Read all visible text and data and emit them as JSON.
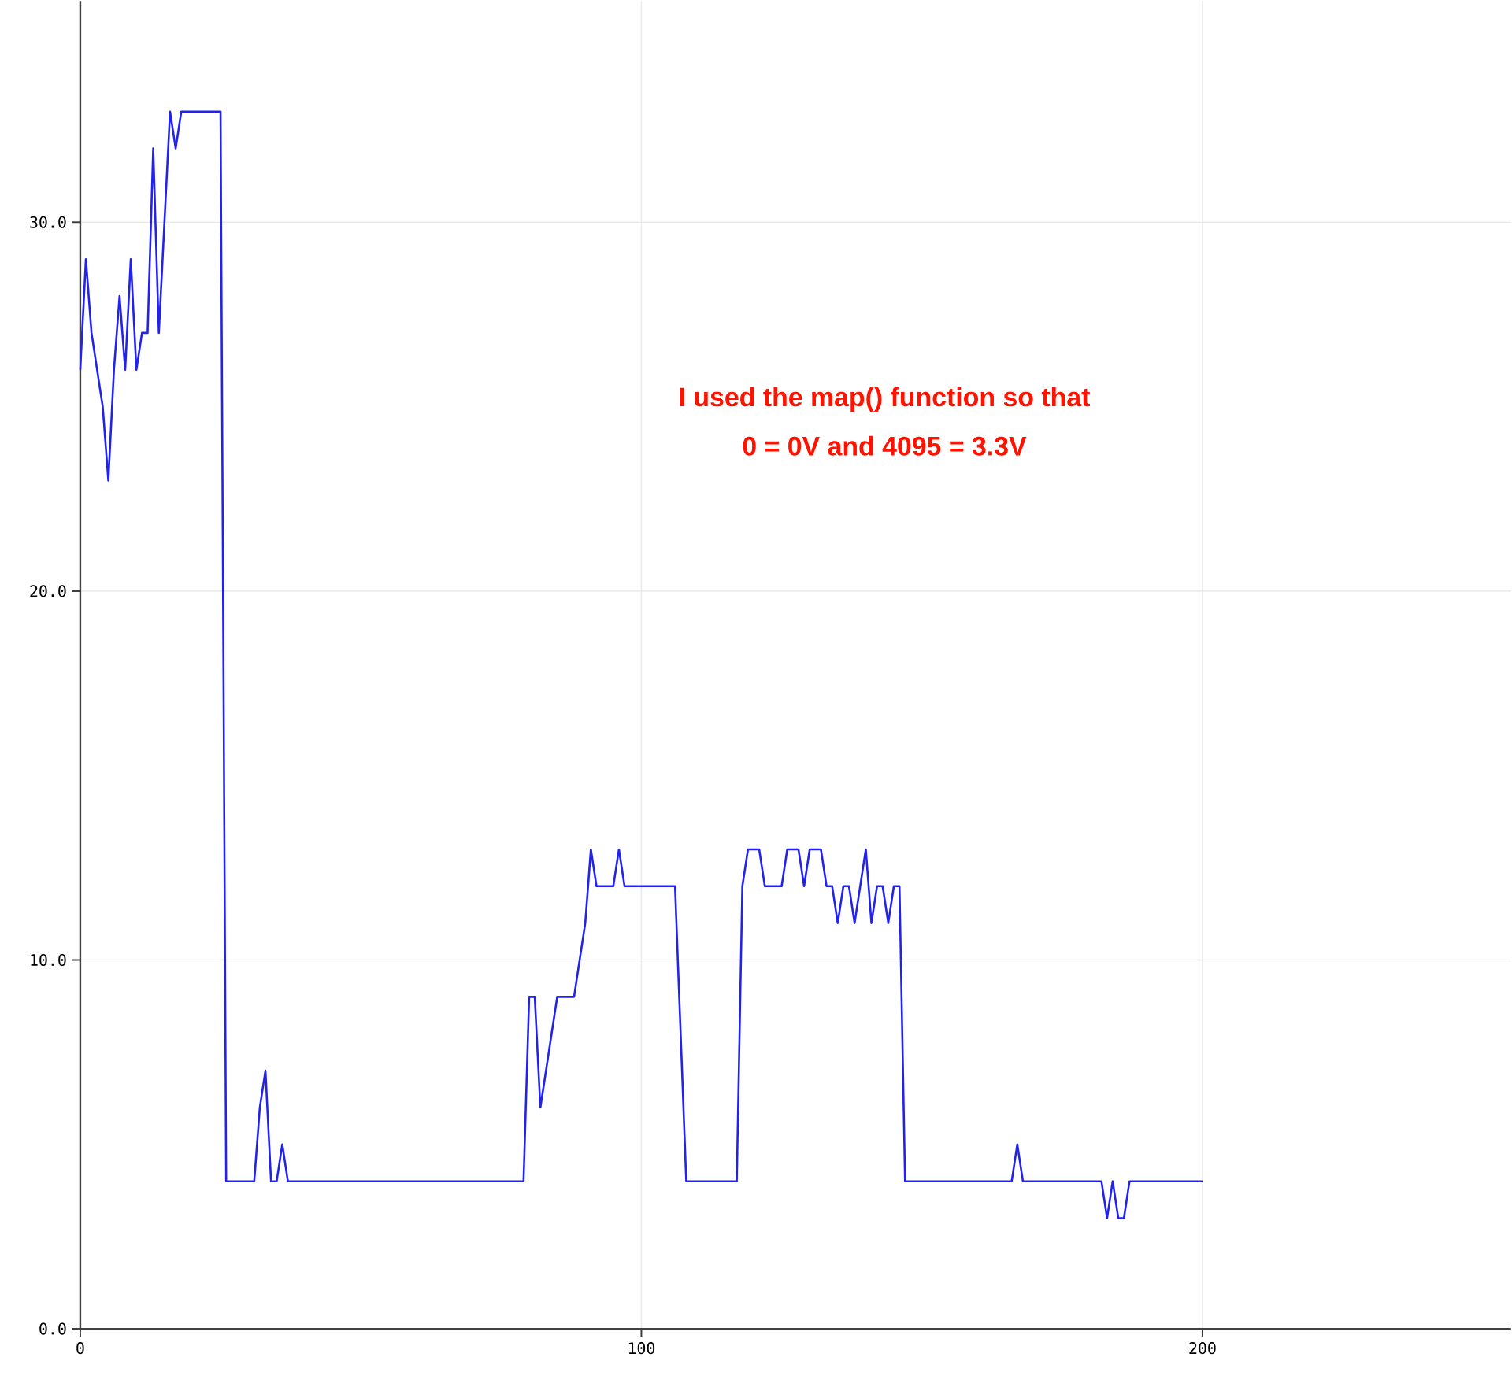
{
  "chart_data": {
    "type": "line",
    "x": [
      0,
      1,
      2,
      4,
      5,
      6,
      7,
      8,
      9,
      10,
      11,
      12,
      13,
      14,
      16,
      17,
      18,
      25,
      26,
      31,
      32,
      33,
      34,
      35,
      36,
      37,
      79,
      80,
      81,
      82,
      84,
      85,
      88,
      89,
      90,
      91,
      92,
      95,
      96,
      97,
      106,
      108,
      117,
      118,
      119,
      121,
      122,
      125,
      126,
      128,
      129,
      130,
      132,
      133,
      134,
      135,
      136,
      137,
      138,
      140,
      141,
      142,
      143,
      144,
      145,
      146,
      147,
      166,
      167,
      168,
      182,
      183,
      184,
      185,
      186,
      187,
      200
    ],
    "series": [
      {
        "color": "#2222ee",
        "values": [
          26,
          29,
          27,
          25,
          23,
          26,
          28,
          26,
          29,
          26,
          27,
          27,
          32,
          27,
          33,
          32,
          33,
          33,
          4,
          4,
          6,
          7,
          4,
          4,
          5,
          4,
          4,
          9,
          9,
          6,
          8,
          9,
          9,
          10,
          11,
          13,
          12,
          12,
          13,
          12,
          12,
          4,
          4,
          12,
          13,
          13,
          12,
          12,
          13,
          13,
          12,
          13,
          13,
          12,
          12,
          11,
          12,
          12,
          11,
          13,
          11,
          12,
          12,
          11,
          12,
          12,
          4,
          4,
          5,
          4,
          4,
          3,
          4,
          3,
          3,
          4,
          4
        ]
      }
    ],
    "xlim": [
      0,
      255
    ],
    "ylim": [
      0,
      36
    ],
    "xticks": [
      0,
      100,
      200
    ],
    "yticks": [
      {
        "value": 0,
        "label": "0.0"
      },
      {
        "value": 10,
        "label": "10.0"
      },
      {
        "value": 20,
        "label": "20.0"
      },
      {
        "value": 30,
        "label": "30.0"
      }
    ],
    "grid": true,
    "marker": "none",
    "line_style": "solid",
    "annotations": [
      "I used the map() function so that",
      "0 = 0V and 4095 = 3.3V"
    ]
  }
}
